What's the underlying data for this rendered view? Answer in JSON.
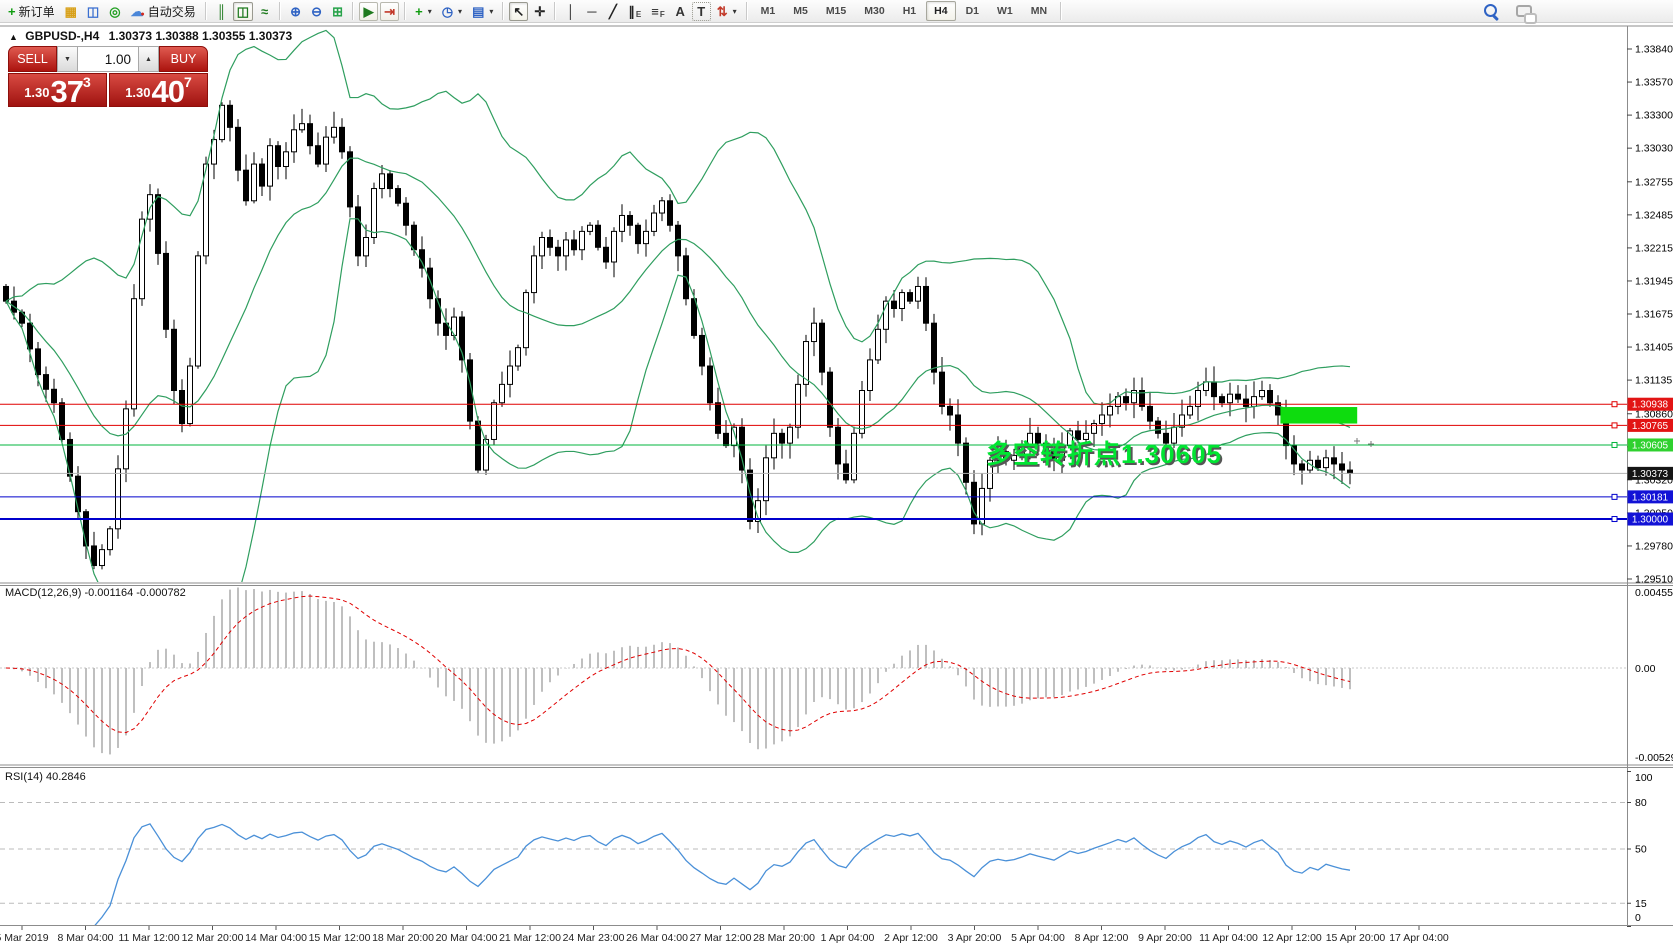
{
  "toolbar": {
    "items": [
      {
        "type": "btn",
        "name": "new-order-button",
        "icon": "new-order-icon",
        "glyph": "+",
        "color": "#0f9c0f",
        "label": "新订单"
      },
      {
        "type": "btn",
        "name": "new-chart-button",
        "icon": "new-chart-icon",
        "glyph": "▦",
        "color": "#d8a018"
      },
      {
        "type": "btn",
        "name": "profiles-button",
        "icon": "profiles-icon",
        "glyph": "◫",
        "color": "#3a6fd0"
      },
      {
        "type": "btn",
        "name": "signals-button",
        "icon": "signals-icon",
        "glyph": "◎",
        "color": "#23a023"
      },
      {
        "type": "btn",
        "name": "autotrading-button",
        "icon": "autotrading-icon",
        "glyph": "☁",
        "color": "#4a86d8",
        "label": "自动交易",
        "badge_glyph": "●",
        "badge_color": "#d42a1e"
      },
      {
        "type": "sep"
      },
      {
        "type": "btn",
        "name": "bar-chart-button",
        "icon": "bar-chart-icon",
        "glyph": "║",
        "color": "#1f7a1f"
      },
      {
        "type": "btn",
        "name": "candlestick-button",
        "icon": "candlestick-icon",
        "glyph": "◫",
        "color": "#1f7a1f",
        "active": true
      },
      {
        "type": "btn",
        "name": "line-chart-button",
        "icon": "line-chart-icon",
        "glyph": "≈",
        "color": "#1f7a1f"
      },
      {
        "type": "sep"
      },
      {
        "type": "btn",
        "name": "zoom-in-button",
        "icon": "zoom-in-icon",
        "glyph": "⊕",
        "color": "#2f63c4"
      },
      {
        "type": "btn",
        "name": "zoom-out-button",
        "icon": "zoom-out-icon",
        "glyph": "⊖",
        "color": "#2f63c4"
      },
      {
        "type": "btn",
        "name": "tile-windows-button",
        "icon": "tile-windows-icon",
        "glyph": "⊞",
        "color": "#27a34a"
      },
      {
        "type": "sep"
      },
      {
        "type": "btn",
        "name": "auto-scroll-button",
        "icon": "auto-scroll-icon",
        "glyph": "▶",
        "color": "#1f7a1f",
        "framed": true
      },
      {
        "type": "btn",
        "name": "chart-shift-button",
        "icon": "chart-shift-icon",
        "glyph": "⇥",
        "color": "#c23a2a",
        "framed": true
      },
      {
        "type": "sep"
      },
      {
        "type": "btn",
        "name": "indicators-button",
        "icon": "indicators-icon",
        "glyph": "+",
        "color": "#0f9c0f",
        "dropdown": true
      },
      {
        "type": "btn",
        "name": "periods-button",
        "icon": "periods-icon",
        "glyph": "◷",
        "color": "#2f63c4",
        "dropdown": true
      },
      {
        "type": "btn",
        "name": "templates-button",
        "icon": "templates-icon",
        "glyph": "▤",
        "color": "#2f63c4",
        "dropdown": true
      },
      {
        "type": "sep"
      },
      {
        "type": "btn",
        "name": "cursor-button",
        "icon": "cursor-icon",
        "glyph": "↖",
        "color": "#222222",
        "active": true
      },
      {
        "type": "btn",
        "name": "crosshair-button",
        "icon": "crosshair-icon",
        "glyph": "✛",
        "color": "#222222"
      },
      {
        "type": "sep"
      },
      {
        "type": "btn",
        "name": "vertical-line-button",
        "icon": "vertical-line-icon",
        "glyph": "│",
        "color": "#222222"
      },
      {
        "type": "btn",
        "name": "horizontal-line-button",
        "icon": "horizontal-line-icon",
        "glyph": "─",
        "color": "#222222"
      },
      {
        "type": "btn",
        "name": "trendline-button",
        "icon": "trendline-icon",
        "glyph": "╱",
        "color": "#222222"
      },
      {
        "type": "btn",
        "name": "equidistant-channel-button",
        "icon": "channel-icon",
        "glyph": "∥",
        "sub": "E",
        "color": "#222222"
      },
      {
        "type": "btn",
        "name": "fibonacci-button",
        "icon": "fibonacci-icon",
        "glyph": "≡",
        "sub": "F",
        "color": "#222222"
      },
      {
        "type": "btn",
        "name": "text-button",
        "icon": "text-icon",
        "glyph": "A",
        "color": "#333333"
      },
      {
        "type": "btn",
        "name": "text-label-button",
        "icon": "text-label-icon",
        "glyph": "T",
        "color": "#333333",
        "framed": "dotted"
      },
      {
        "type": "btn",
        "name": "arrows-button",
        "icon": "arrows-icon",
        "glyph": "⇅",
        "color": "#c23a2a",
        "dropdown": true
      },
      {
        "type": "sep"
      },
      {
        "type": "tf",
        "name": "tf-m1-button",
        "label": "M1"
      },
      {
        "type": "tf",
        "name": "tf-m5-button",
        "label": "M5"
      },
      {
        "type": "tf",
        "name": "tf-m15-button",
        "label": "M15"
      },
      {
        "type": "tf",
        "name": "tf-m30-button",
        "label": "M30"
      },
      {
        "type": "tf",
        "name": "tf-h1-button",
        "label": "H1"
      },
      {
        "type": "tf",
        "name": "tf-h4-button",
        "label": "H4",
        "active": true
      },
      {
        "type": "tf",
        "name": "tf-d1-button",
        "label": "D1"
      },
      {
        "type": "tf",
        "name": "tf-w1-button",
        "label": "W1"
      },
      {
        "type": "tf",
        "name": "tf-mn-button",
        "label": "MN"
      },
      {
        "type": "sep"
      }
    ]
  },
  "chart_header": {
    "marker": "▲",
    "symbol": "GBPUSD-,H4",
    "ohlc": "1.30373 1.30388 1.30355 1.30373"
  },
  "trade_panel": {
    "sell_label": "SELL",
    "buy_label": "BUY",
    "volume": "1.00",
    "down_glyph": "▼",
    "up_glyph": "▲",
    "sell_price": {
      "prefix": "1.30",
      "big": "37",
      "sup": "3"
    },
    "buy_price": {
      "prefix": "1.30",
      "big": "40",
      "sup": "7"
    }
  },
  "chart_data": {
    "type": "candlestick",
    "symbol": "GBPUSD-",
    "timeframe": "H4",
    "ohlc_display": {
      "open": "1.30373",
      "high": "1.30388",
      "low": "1.30355",
      "close": "1.30373"
    },
    "price_axis_ticks": [
      "1.33840",
      "1.33570",
      "1.33300",
      "1.33030",
      "1.32755",
      "1.32485",
      "1.32215",
      "1.31945",
      "1.31675",
      "1.31405",
      "1.31135",
      "1.30860",
      "1.30590",
      "1.30320",
      "1.30050",
      "1.29780",
      "1.29510"
    ],
    "y_range": {
      "top": 1.3384,
      "bottom": 1.2951
    },
    "closes": [
      1.3178,
      1.3169,
      1.316,
      1.3139,
      1.3118,
      1.3106,
      1.3095,
      1.3065,
      1.3035,
      1.3006,
      1.2978,
      1.2962,
      1.2975,
      1.2992,
      1.3041,
      1.309,
      1.318,
      1.3245,
      1.3265,
      1.3217,
      1.3155,
      1.3105,
      1.3078,
      1.3125,
      1.3215,
      1.329,
      1.331,
      1.3338,
      1.332,
      1.3285,
      1.326,
      1.329,
      1.3272,
      1.3305,
      1.3288,
      1.33,
      1.3318,
      1.3323,
      1.3305,
      1.329,
      1.3312,
      1.332,
      1.33,
      1.3255,
      1.3215,
      1.323,
      1.327,
      1.3282,
      1.327,
      1.3258,
      1.324,
      1.322,
      1.3205,
      1.318,
      1.316,
      1.315,
      1.3165,
      1.313,
      1.308,
      1.304,
      1.3065,
      1.3095,
      1.311,
      1.3125,
      1.314,
      1.3185,
      1.3215,
      1.323,
      1.3222,
      1.3215,
      1.3228,
      1.322,
      1.3235,
      1.324,
      1.3222,
      1.321,
      1.3235,
      1.3248,
      1.324,
      1.3225,
      1.3235,
      1.325,
      1.326,
      1.324,
      1.3215,
      1.318,
      1.315,
      1.3125,
      1.3095,
      1.307,
      1.306,
      1.3075,
      1.304,
      1.2998,
      1.3015,
      1.305,
      1.307,
      1.3062,
      1.3075,
      1.311,
      1.3145,
      1.316,
      1.312,
      1.3075,
      1.3045,
      1.3032,
      1.307,
      1.3105,
      1.313,
      1.3155,
      1.3178,
      1.3172,
      1.3185,
      1.3178,
      1.319,
      1.316,
      1.312,
      1.3092,
      1.3085,
      1.3062,
      1.303,
      1.2996,
      1.3025,
      1.3048,
      1.3055,
      1.3048,
      1.3052,
      1.306,
      1.307,
      1.3062,
      1.3055,
      1.3048,
      1.306,
      1.3072,
      1.3065,
      1.307,
      1.3078,
      1.3085,
      1.3092,
      1.31,
      1.3095,
      1.3105,
      1.3092,
      1.308,
      1.307,
      1.3062,
      1.3075,
      1.3085,
      1.3092,
      1.3105,
      1.3112,
      1.31,
      1.3095,
      1.3102,
      1.3098,
      1.3092,
      1.31,
      1.3105,
      1.3095,
      1.3085,
      1.306,
      1.3045,
      1.304,
      1.3048,
      1.3042,
      1.305,
      1.3045,
      1.304,
      1.30373
    ],
    "bollinger": {
      "period": 20,
      "deviation": 1.8,
      "color": "#2f9e5f"
    },
    "hlines": [
      {
        "price": 1.30938,
        "label": "1.30938",
        "color": "#e00000",
        "badge": "#e21414",
        "width": 1,
        "handle": true
      },
      {
        "price": 1.30765,
        "label": "1.30765",
        "color": "#e00000",
        "badge": "#e21414",
        "width": 1,
        "handle": true
      },
      {
        "price": 1.30605,
        "label": "1.30605",
        "color": "#00b43c",
        "badge": "#2fd12f",
        "width": 1,
        "handle": true
      },
      {
        "price": 1.30373,
        "label": "1.30373",
        "color": "#b2b2b2",
        "badge": "#151515",
        "width": 1,
        "current": true
      },
      {
        "price": 1.30181,
        "label": "1.30181",
        "color": "#0000cc",
        "badge": "#1212d6",
        "width": 1,
        "handle": true
      },
      {
        "price": 1.3,
        "label": "1.30000",
        "color": "#0000cc",
        "badge": "#1212d6",
        "width": 2,
        "handle": true
      }
    ],
    "highlight_rect": {
      "index_from": 159.3,
      "index_to": 168.9,
      "price_from": 1.3078,
      "price_to": 1.30915,
      "color": "#0edc0e"
    },
    "annotation": {
      "text": "多空转折点1.30605",
      "color": "#00e532"
    },
    "macd": {
      "label": "MACD(12,26,9) -0.001164 -0.000782",
      "params": [
        12,
        26,
        9
      ],
      "values_display": [
        "-0.001164",
        "-0.000782"
      ],
      "scale": {
        "max": "0.004551",
        "zero": "0.00",
        "min": "-0.005295"
      },
      "histogram_color": "#bfbfbf",
      "signal_color": "#e00000"
    },
    "rsi": {
      "label": "RSI(14) 40.2846",
      "period": 14,
      "value_display": "40.2846",
      "levels": [
        80,
        50,
        15
      ],
      "scale_labels": [
        [
          "100",
          100
        ],
        [
          "80",
          80
        ],
        [
          "50",
          50
        ],
        [
          "15",
          15
        ],
        [
          "0",
          0
        ]
      ],
      "line_color": "#4a90d8"
    },
    "time_labels": [
      "5 Mar 2019",
      "8 Mar 04:00",
      "11 Mar 12:00",
      "12 Mar 20:00",
      "14 Mar 04:00",
      "15 Mar 12:00",
      "18 Mar 20:00",
      "20 Mar 04:00",
      "21 Mar 12:00",
      "24 Mar 23:00",
      "26 Mar 04:00",
      "27 Mar 12:00",
      "28 Mar 20:00",
      "1 Apr 04:00",
      "2 Apr 12:00",
      "3 Apr 20:00",
      "5 Apr 04:00",
      "8 Apr 12:00",
      "9 Apr 20:00",
      "11 Apr 04:00",
      "12 Apr 12:00",
      "15 Apr 20:00",
      "17 Apr 04:00"
    ]
  }
}
